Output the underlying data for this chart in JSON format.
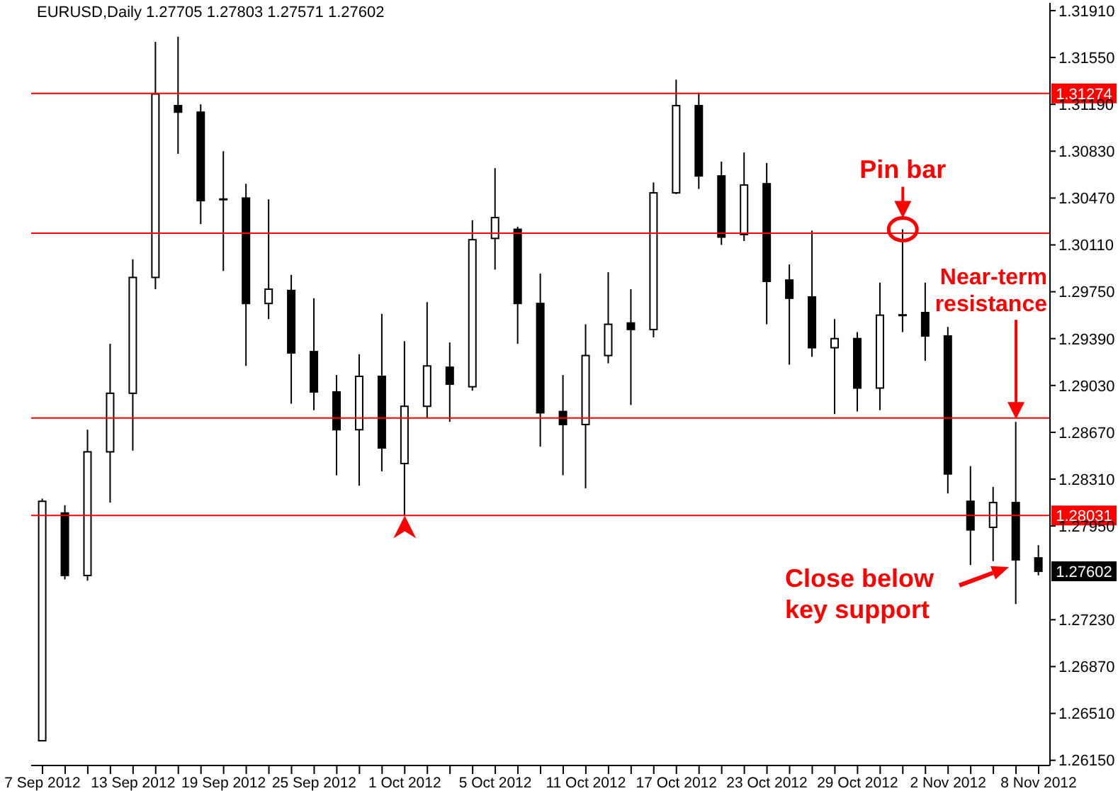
{
  "chart_data": {
    "type": "candlestick",
    "title": "EURUSD,Daily 1.27705 1.27803 1.27571 1.27602",
    "categories": [
      "7 Sep 2012",
      null,
      null,
      null,
      "13 Sep 2012",
      null,
      null,
      null,
      "19 Sep 2012",
      null,
      null,
      null,
      "25 Sep 2012",
      null,
      null,
      null,
      "1 Oct 2012",
      null,
      null,
      null,
      "5 Oct 2012",
      null,
      null,
      null,
      "11 Oct 2012",
      null,
      null,
      null,
      "17 Oct 2012",
      null,
      null,
      null,
      "23 Oct 2012",
      null,
      null,
      null,
      "29 Oct 2012",
      null,
      null,
      null,
      "2 Nov 2012",
      null,
      null,
      null,
      "8 Nov 2012"
    ],
    "series": [
      {
        "color": "#000000",
        "ohlc": [
          [
            1.263,
            1.2816,
            1.263,
            1.2814
          ],
          [
            1.2805,
            1.2811,
            1.2754,
            1.2757
          ],
          [
            1.2757,
            1.2869,
            1.2753,
            1.2852
          ],
          [
            1.2852,
            1.2935,
            1.2813,
            1.2897
          ],
          [
            1.2897,
            1.3,
            1.2853,
            1.2986
          ],
          [
            1.2986,
            1.3167,
            1.2977,
            1.3127
          ],
          [
            1.3118,
            1.3171,
            1.3081,
            1.3113
          ],
          [
            1.3113,
            1.3119,
            1.3027,
            1.3045
          ],
          [
            1.3046,
            1.3083,
            1.2991,
            1.3046
          ],
          [
            1.3047,
            1.3058,
            1.2918,
            1.2966
          ],
          [
            1.2966,
            1.3046,
            1.2954,
            1.2977
          ],
          [
            1.2976,
            1.2988,
            1.2889,
            1.2928
          ],
          [
            1.2929,
            1.297,
            1.2884,
            1.2898
          ],
          [
            1.2898,
            1.2911,
            1.2834,
            1.2869
          ],
          [
            1.2869,
            1.2927,
            1.2826,
            1.291
          ],
          [
            1.291,
            1.2958,
            1.2837,
            1.2855
          ],
          [
            1.2843,
            1.2937,
            1.2803,
            1.2887
          ],
          [
            1.2887,
            1.2967,
            1.2878,
            1.2918
          ],
          [
            1.2917,
            1.2936,
            1.2875,
            1.2904
          ],
          [
            1.2902,
            1.303,
            1.2899,
            1.3015
          ],
          [
            1.3016,
            1.307,
            1.2992,
            1.3032
          ],
          [
            1.3023,
            1.3025,
            1.2935,
            1.2966
          ],
          [
            1.2966,
            1.2989,
            1.2856,
            1.2882
          ],
          [
            1.2883,
            1.2911,
            1.2834,
            1.2873
          ],
          [
            1.2873,
            1.295,
            1.2824,
            1.2926
          ],
          [
            1.2926,
            1.299,
            1.292,
            1.295
          ],
          [
            1.2951,
            1.2977,
            1.2888,
            1.2946
          ],
          [
            1.2946,
            1.3059,
            1.294,
            1.3051
          ],
          [
            1.3051,
            1.3138,
            1.305,
            1.3118
          ],
          [
            1.3118,
            1.3128,
            1.3054,
            1.3064
          ],
          [
            1.3064,
            1.3075,
            1.3011,
            1.3017
          ],
          [
            1.3019,
            1.3082,
            1.3014,
            1.3057
          ],
          [
            1.3058,
            1.3074,
            1.295,
            1.2983
          ],
          [
            1.2984,
            1.2996,
            1.2919,
            1.297
          ],
          [
            1.2971,
            1.3022,
            1.2925,
            1.2932
          ],
          [
            1.2932,
            1.2954,
            1.2881,
            1.2939
          ],
          [
            1.2939,
            1.2944,
            1.2883,
            1.2901
          ],
          [
            1.2901,
            1.2982,
            1.2884,
            1.2957
          ],
          [
            1.2957,
            1.3023,
            1.2944,
            1.2957
          ],
          [
            1.2959,
            1.2982,
            1.2922,
            1.2941
          ],
          [
            1.2941,
            1.2948,
            1.282,
            1.2835
          ],
          [
            1.2814,
            1.2841,
            1.2765,
            1.2792
          ],
          [
            1.2794,
            1.2825,
            1.2768,
            1.2813
          ],
          [
            1.2813,
            1.2875,
            1.2735,
            1.2769
          ],
          [
            1.27705,
            1.27803,
            1.27571,
            1.27602
          ]
        ]
      }
    ],
    "ylim": [
      1.2611,
      1.3197
    ],
    "yticks": [
      {
        "value": 1.3191,
        "label": "1.31910"
      },
      {
        "value": 1.3155,
        "label": "1.31550"
      },
      {
        "value": 1.3119,
        "label": "1.31190"
      },
      {
        "value": 1.3083,
        "label": "1.30830"
      },
      {
        "value": 1.3047,
        "label": "1.30470"
      },
      {
        "value": 1.3011,
        "label": "1.30110"
      },
      {
        "value": 1.2975,
        "label": "1.29750"
      },
      {
        "value": 1.2939,
        "label": "1.29390"
      },
      {
        "value": 1.2903,
        "label": "1.29030"
      },
      {
        "value": 1.2867,
        "label": "1.28670"
      },
      {
        "value": 1.2831,
        "label": "1.28310"
      },
      {
        "value": 1.2795,
        "label": "1.27950"
      },
      {
        "value": 1.2723,
        "label": "1.27230"
      },
      {
        "value": 1.2687,
        "label": "1.26870"
      },
      {
        "value": 1.2651,
        "label": "1.26510"
      },
      {
        "value": 1.2615,
        "label": "1.26150"
      }
    ],
    "ref_lines": [
      {
        "axis": "y",
        "value": 1.31274,
        "label": "1.31274",
        "color": "#ff0000"
      },
      {
        "axis": "y",
        "value": 1.28031,
        "label": "1.28031",
        "color": "#ff0000"
      },
      {
        "axis": "y",
        "value": 1.302,
        "color": "#ff0000"
      },
      {
        "axis": "y",
        "value": 1.2878,
        "color": "#ff0000"
      }
    ],
    "annotations": [
      {
        "text": "Pin bar",
        "y": 1.3023
      },
      "Near-term resistance",
      "Close below key support",
      "1.27602"
    ]
  }
}
